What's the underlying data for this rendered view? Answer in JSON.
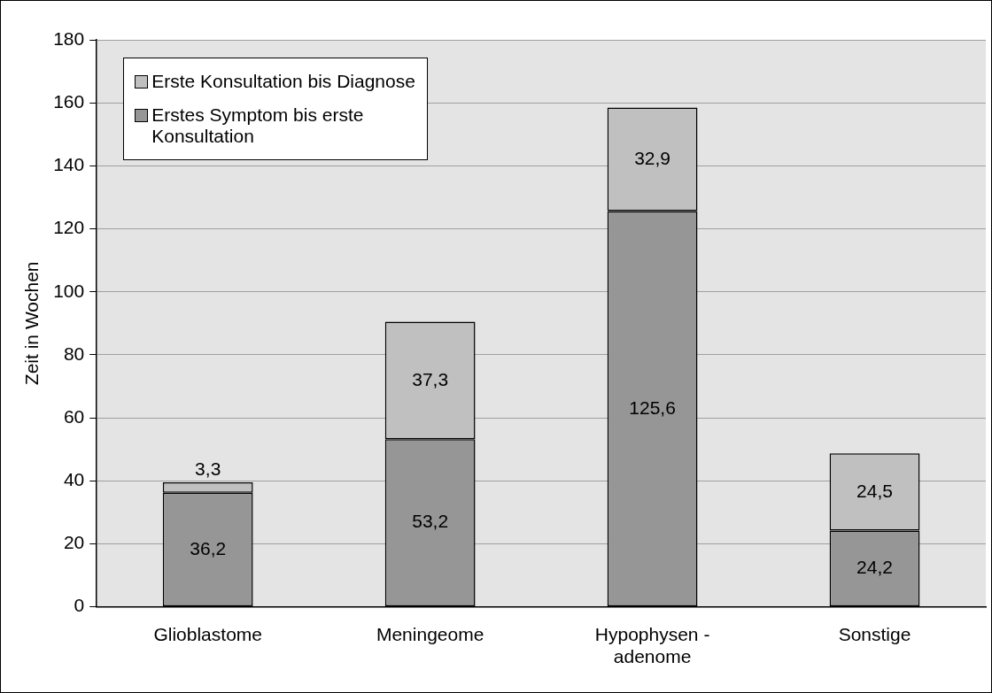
{
  "chart_data": {
    "type": "bar",
    "stacked": true,
    "ylabel": "Zeit in Wochen",
    "categories": [
      "Glioblastome",
      "Meningeome",
      "Hypophysen - adenome",
      "Sonstige"
    ],
    "series": [
      {
        "name": "Erstes Symptom bis erste Konsultation",
        "color": "#969696",
        "values": [
          36.2,
          53.2,
          125.6,
          24.2
        ],
        "value_labels": [
          "36,2",
          "53,2",
          "125,6",
          "24,2"
        ]
      },
      {
        "name": "Erste Konsultation bis Diagnose",
        "color": "#c0c0c0",
        "values": [
          3.3,
          37.3,
          32.9,
          24.5
        ],
        "value_labels": [
          "3,3",
          "37,3",
          "32,9",
          "24,5"
        ]
      }
    ],
    "ylim": [
      0,
      180
    ],
    "yticks": [
      0,
      20,
      40,
      60,
      80,
      100,
      120,
      140,
      160,
      180
    ],
    "grid": "y",
    "legend": "top left"
  }
}
